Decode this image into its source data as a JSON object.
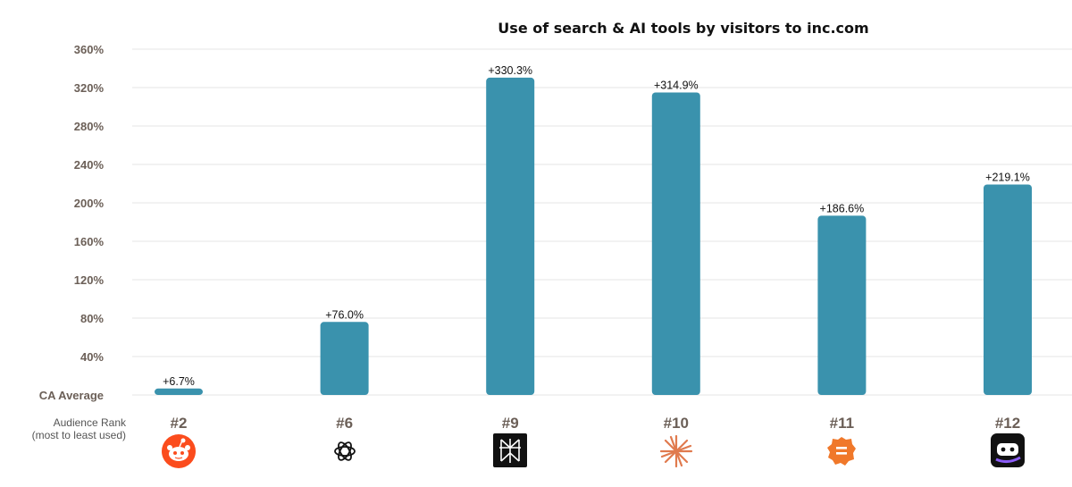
{
  "chart_data": {
    "type": "bar",
    "title": "Use of search & AI tools by visitors to inc.com",
    "xlabel": "",
    "ylabel": "",
    "ylim": [
      0,
      360
    ],
    "yticks": [
      {
        "value": 0,
        "label": "CA Average"
      },
      {
        "value": 40,
        "label": "40%"
      },
      {
        "value": 80,
        "label": "80%"
      },
      {
        "value": 120,
        "label": "120%"
      },
      {
        "value": 160,
        "label": "160%"
      },
      {
        "value": 200,
        "label": "200%"
      },
      {
        "value": 240,
        "label": "240%"
      },
      {
        "value": 280,
        "label": "280%"
      },
      {
        "value": 320,
        "label": "320%"
      },
      {
        "value": 360,
        "label": "360%"
      }
    ],
    "grid": true,
    "categories": [
      "#2",
      "#6",
      "#9",
      "#10",
      "#11",
      "#12"
    ],
    "values": [
      6.7,
      76.0,
      330.3,
      314.9,
      186.6,
      219.1
    ],
    "data_labels": [
      "+6.7%",
      "+76.0%",
      "+330.3%",
      "+314.9%",
      "+186.6%",
      "+219.1%"
    ],
    "bar_color": "#3a92ad",
    "grid_color": "#e6e6e6",
    "rank_caption": [
      "Audience Rank",
      "(most to least used)"
    ],
    "icons": [
      "reddit-icon",
      "chatgpt-icon",
      "perplexity-icon",
      "claude-icon",
      "chat-bubble-icon",
      "robot-icon"
    ]
  }
}
